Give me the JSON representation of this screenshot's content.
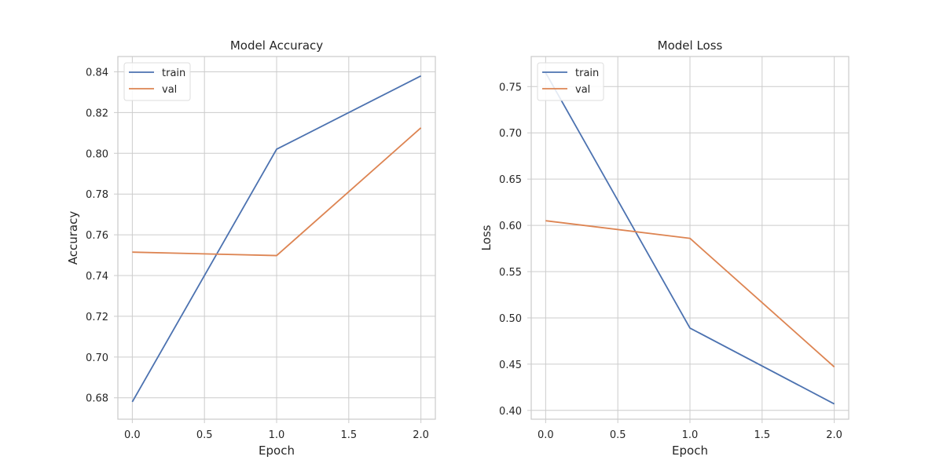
{
  "chart_data": [
    {
      "type": "line",
      "title": "Model Accuracy",
      "xlabel": "Epoch",
      "ylabel": "Accuracy",
      "xlim": [
        -0.1,
        2.1
      ],
      "ylim": [
        0.6695,
        0.8475
      ],
      "xticks": [
        0.0,
        0.5,
        1.0,
        1.5,
        2.0
      ],
      "xtick_labels": [
        "0.0",
        "0.5",
        "1.0",
        "1.5",
        "2.0"
      ],
      "yticks": [
        0.68,
        0.7,
        0.72,
        0.74,
        0.76,
        0.78,
        0.8,
        0.82,
        0.84
      ],
      "ytick_labels": [
        "0.68",
        "0.70",
        "0.72",
        "0.74",
        "0.76",
        "0.78",
        "0.80",
        "0.82",
        "0.84"
      ],
      "grid": true,
      "legend_position": "upper left",
      "x": [
        0,
        1,
        2
      ],
      "series": [
        {
          "name": "train",
          "color": "#4c72b0",
          "values": [
            0.678,
            0.802,
            0.838
          ]
        },
        {
          "name": "val",
          "color": "#dd8452",
          "values": [
            0.7515,
            0.7498,
            0.8125
          ]
        }
      ]
    },
    {
      "type": "line",
      "title": "Model Loss",
      "xlabel": "Epoch",
      "ylabel": "Loss",
      "xlim": [
        -0.1,
        2.1
      ],
      "ylim": [
        0.3905,
        0.7825
      ],
      "xticks": [
        0.0,
        0.5,
        1.0,
        1.5,
        2.0
      ],
      "xtick_labels": [
        "0.0",
        "0.5",
        "1.0",
        "1.5",
        "2.0"
      ],
      "yticks": [
        0.4,
        0.45,
        0.5,
        0.55,
        0.6,
        0.65,
        0.7,
        0.75
      ],
      "ytick_labels": [
        "0.40",
        "0.45",
        "0.50",
        "0.55",
        "0.60",
        "0.65",
        "0.70",
        "0.75"
      ],
      "grid": true,
      "legend_position": "upper left",
      "x": [
        0,
        1,
        2
      ],
      "series": [
        {
          "name": "train",
          "color": "#4c72b0",
          "values": [
            0.765,
            0.489,
            0.407
          ]
        },
        {
          "name": "val",
          "color": "#dd8452",
          "values": [
            0.605,
            0.586,
            0.447
          ]
        }
      ]
    }
  ]
}
